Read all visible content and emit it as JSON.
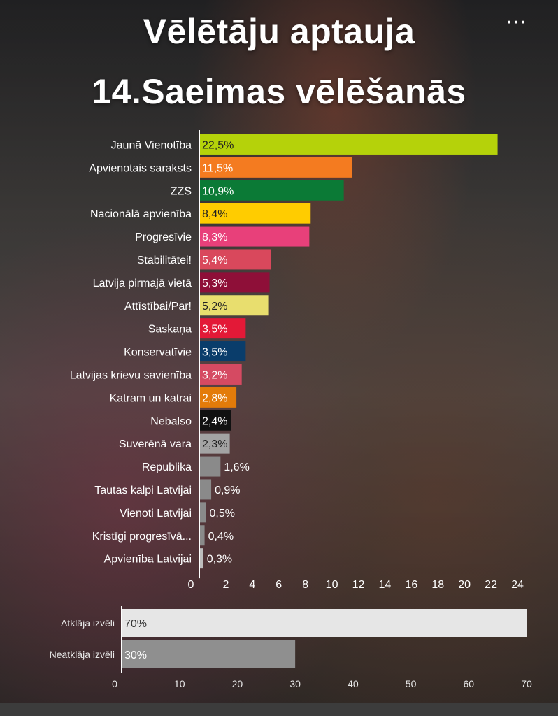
{
  "title_line1": "Vēlētāju aptauja",
  "title_line2": "14.Saeimas vēlēšanās",
  "more_icon": "⋯",
  "chart_data": [
    {
      "type": "bar",
      "orientation": "horizontal",
      "categories": [
        "Jaunā Vienotība",
        "Apvienotais saraksts",
        "ZZS",
        "Nacionālā apvienība",
        "Progresīvie",
        "Stabilitātei!",
        "Latvija pirmajā vietā",
        "Attīstībai/Par!",
        "Saskaņa",
        "Konservatīvie",
        "Latvijas krievu savienība",
        "Katram un katrai",
        "Nebalso",
        "Suverēnā vara",
        "Republika",
        "Tautas kalpi Latvijai",
        "Vienoti Latvijai",
        "Kristīgi progresīvā...",
        "Apvienība Latvijai"
      ],
      "values": [
        22.5,
        11.5,
        10.9,
        8.4,
        8.3,
        5.4,
        5.3,
        5.2,
        3.5,
        3.5,
        3.2,
        2.8,
        2.4,
        2.3,
        1.6,
        0.9,
        0.5,
        0.4,
        0.3
      ],
      "labels": [
        "22,5%",
        "11,5%",
        "10,9%",
        "8,4%",
        "8,3%",
        "5,4%",
        "5,3%",
        "5,2%",
        "3,5%",
        "3,5%",
        "3,2%",
        "2,8%",
        "2,4%",
        "2,3%",
        "1,6%",
        "0,9%",
        "0,5%",
        "0,4%",
        "0,3%"
      ],
      "colors": [
        "#b5d20a",
        "#f47b20",
        "#0b7a36",
        "#ffcc00",
        "#e8407a",
        "#d9485c",
        "#8e0f38",
        "#e8de6e",
        "#e31937",
        "#0a3d6b",
        "#d54a62",
        "#e37b0a",
        "#111111",
        "#a3a3a3",
        "#8a8a8a",
        "#8a8a8a",
        "#8a8a8a",
        "#8a8a8a",
        "#bdbdbd"
      ],
      "label_inside": [
        true,
        true,
        true,
        true,
        true,
        true,
        true,
        true,
        true,
        true,
        true,
        true,
        true,
        true,
        false,
        false,
        false,
        false,
        false
      ],
      "xticks": [
        0,
        2,
        4,
        6,
        8,
        10,
        12,
        14,
        16,
        18,
        20,
        22,
        24
      ],
      "xlim": [
        0,
        24
      ]
    },
    {
      "type": "bar",
      "orientation": "horizontal",
      "categories": [
        "Atklāja izvēli",
        "Neatklāja izvēli"
      ],
      "values": [
        70,
        30
      ],
      "labels": [
        "70%",
        "30%"
      ],
      "colors": [
        "#e6e6e6",
        "#8f8f8f"
      ],
      "xticks": [
        0,
        10,
        20,
        30,
        40,
        50,
        60,
        70
      ],
      "xlim": [
        0,
        70
      ]
    }
  ]
}
